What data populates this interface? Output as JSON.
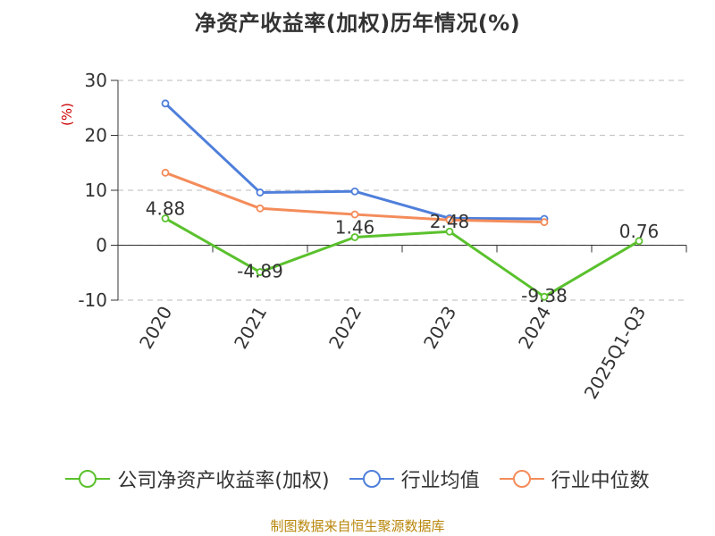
{
  "chart_data": {
    "type": "line",
    "title": "净资产收益率(加权)历年情况(%)",
    "ylabel": "(%)",
    "categories": [
      "2020",
      "2021",
      "2022",
      "2023",
      "2024",
      "2025Q1-Q3"
    ],
    "ylim": [
      -10,
      30
    ],
    "yticks": [
      30,
      20,
      10,
      0,
      -10
    ],
    "grid": true,
    "legend_position": "bottom",
    "series": [
      {
        "name": "公司净资产收益率(加权)",
        "color": "#5ac12d",
        "values": [
          4.88,
          -4.89,
          1.46,
          2.48,
          -9.38,
          0.76
        ],
        "labels": [
          "4.88",
          "-4.89",
          "1.46",
          "2.48",
          "-9.38",
          "0.76"
        ]
      },
      {
        "name": "行业均值",
        "color": "#4f7fdb",
        "values": [
          25.8,
          9.6,
          9.8,
          4.9,
          4.8,
          null
        ]
      },
      {
        "name": "行业中位数",
        "color": "#f48c5a",
        "values": [
          13.2,
          6.7,
          5.6,
          4.6,
          4.2,
          null
        ]
      }
    ]
  },
  "source": "制图数据来自恒生聚源数据库"
}
